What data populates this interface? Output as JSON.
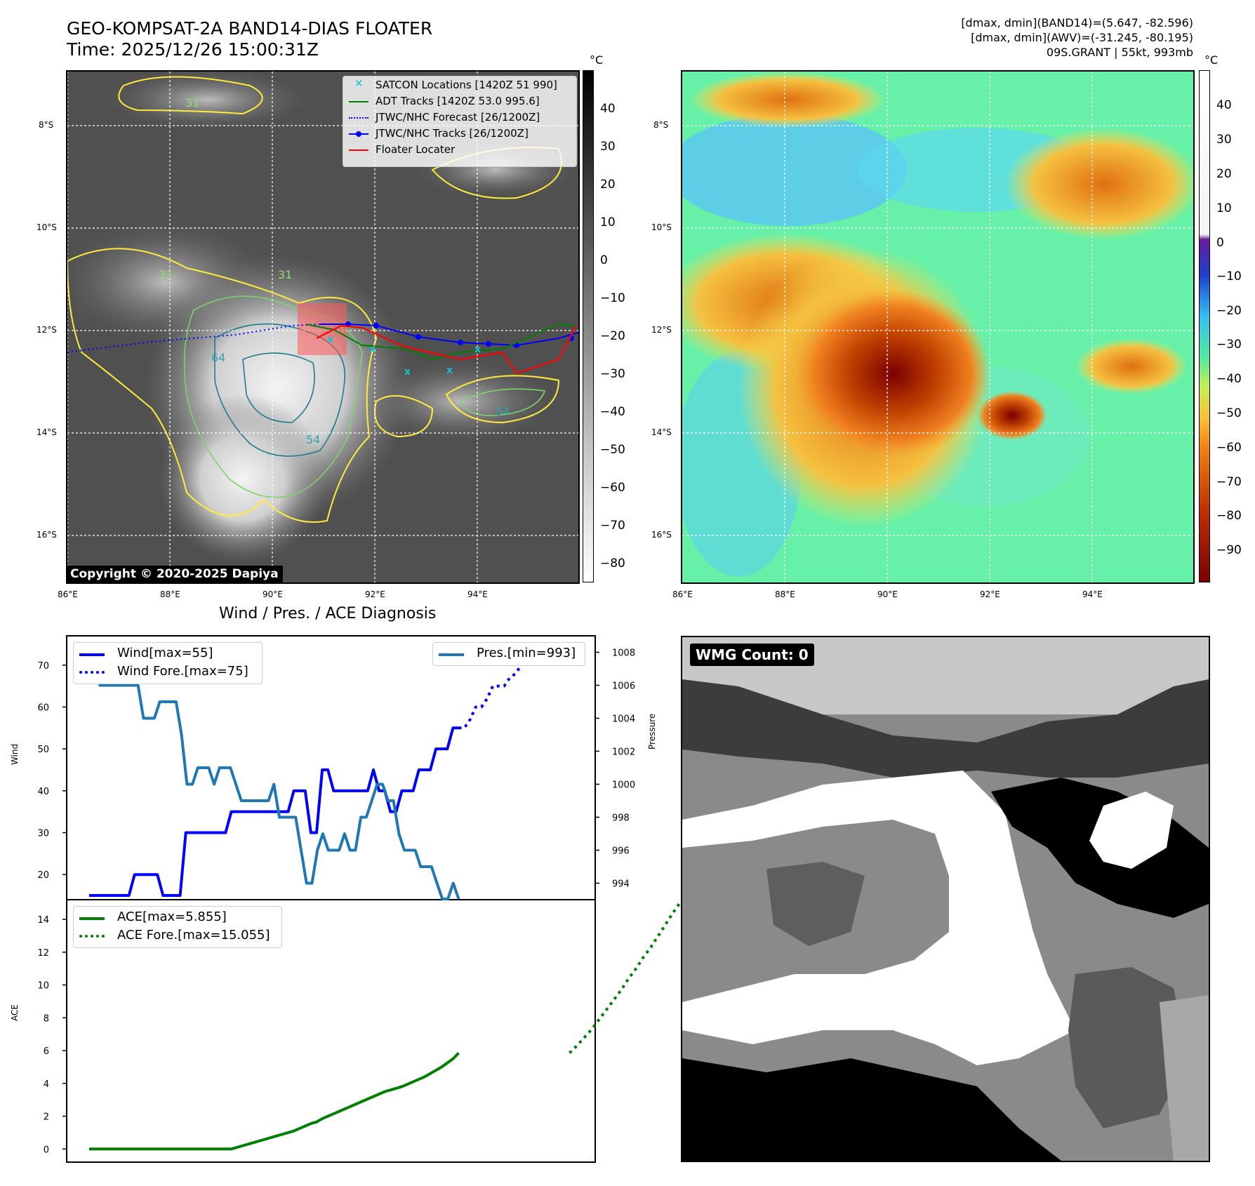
{
  "header": {
    "title_line1": "GEO-KOMPSAT-2A BAND14-DIAS FLOATER",
    "title_line2": "Time: 2025/12/26 15:00:31Z",
    "right_line1": "[dmax, dmin](BAND14)=(5.647, -82.596)",
    "right_line2": "[dmax, dmin](AWV)=(-31.245, -80.195)",
    "right_line3": "09S.GRANT | 55kt, 993mb"
  },
  "map_axes": {
    "lat_labels": [
      "8°S",
      "10°S",
      "12°S",
      "14°S",
      "16°S"
    ],
    "lon_labels": [
      "86°E",
      "88°E",
      "90°E",
      "92°E",
      "94°E"
    ]
  },
  "ir_panel": {
    "legend": [
      {
        "label": "SATCON Locations [1420Z 51 990]",
        "color": "#17becf",
        "style": "x"
      },
      {
        "label": "ADT Tracks [1420Z 53.0 995.6]",
        "color": "#008000",
        "style": "solid"
      },
      {
        "label": "JTWC/NHC Forecast [26/1200Z]",
        "color": "#0000ff",
        "style": "dotted"
      },
      {
        "label": "JTWC/NHC Tracks [26/1200Z]",
        "color": "#0000ff",
        "style": "solid-dot"
      },
      {
        "label": "Floater Locater",
        "color": "#ff0000",
        "style": "solid"
      }
    ],
    "contour_labels": [
      "31",
      "31",
      "31",
      "64",
      "54",
      "54"
    ],
    "colorbar_unit": "°C",
    "colorbar_ticks": [
      "40",
      "30",
      "20",
      "10",
      "0",
      "−10",
      "−20",
      "−30",
      "−40",
      "−50",
      "−60",
      "−70",
      "−80"
    ],
    "copyright": "Copyright © 2020-2025 Dapiya"
  },
  "awv_panel": {
    "colorbar_unit": "°C",
    "colorbar_ticks": [
      "40",
      "30",
      "20",
      "10",
      "0",
      "−10",
      "−20",
      "−30",
      "−40",
      "−50",
      "−60",
      "−70",
      "−80",
      "−90"
    ]
  },
  "diagnosis": {
    "title": "Wind / Pres. / ACE Diagnosis",
    "wind_ylabel": "Wind",
    "pressure_ylabel": "Pressure",
    "ace_ylabel": "ACE",
    "legend_wind": "Wind[max=55]",
    "legend_wind_fore": "Wind Fore.[max=75]",
    "legend_pres": "Pres.[min=993]",
    "legend_ace": "ACE[max=5.855]",
    "legend_ace_fore": "ACE Fore.[max=15.055]"
  },
  "wmg": {
    "badge": "WMG Count: 0"
  },
  "chart_data": [
    {
      "type": "line",
      "title": "Wind / Pres. / ACE Diagnosis",
      "ylabel": "Wind",
      "ylim": [
        14,
        77
      ],
      "yticks": [
        20,
        30,
        40,
        50,
        60,
        70
      ],
      "series": [
        {
          "name": "Wind[max=55]",
          "color": "#0000ff",
          "style": "solid",
          "values": [
            15,
            15,
            15,
            15,
            15,
            15,
            15,
            15,
            20,
            20,
            20,
            20,
            20,
            15,
            15,
            15,
            15,
            30,
            30,
            30,
            30,
            30,
            30,
            30,
            30,
            35,
            35,
            35,
            35,
            35,
            35,
            35,
            35,
            35,
            35,
            35,
            40,
            40,
            40,
            30,
            30,
            45,
            45,
            40,
            40,
            40,
            40,
            40,
            40,
            40,
            45,
            40,
            40,
            35,
            35,
            40,
            40,
            40,
            45,
            45,
            45,
            50,
            50,
            50,
            55,
            55
          ]
        },
        {
          "name": "Wind Fore.[max=75]",
          "color": "#0000ff",
          "style": "dotted",
          "values": [
            55,
            55,
            57,
            60,
            60,
            62,
            65,
            65,
            65,
            67,
            68,
            70,
            72,
            73,
            74,
            75,
            75
          ]
        }
      ]
    },
    {
      "type": "line",
      "ylabel": "Pressure",
      "ylim": [
        993,
        1009
      ],
      "yticks": [
        994,
        996,
        998,
        1000,
        1002,
        1004,
        1006,
        1008
      ],
      "series": [
        {
          "name": "Pres.[min=993]",
          "color": "#1f77b4",
          "style": "solid",
          "values": [
            1008,
            1008,
            1006,
            1006,
            1006,
            1006,
            1006,
            1006,
            1006,
            1006,
            1004,
            1004,
            1004,
            1005,
            1005,
            1005,
            1005,
            1003,
            1000,
            1000,
            1001,
            1001,
            1001,
            1000,
            1001,
            1001,
            1001,
            1000,
            999,
            999,
            999,
            999,
            999,
            999,
            1000,
            998,
            998,
            998,
            998,
            996,
            994,
            994,
            996,
            997,
            996,
            996,
            996,
            997,
            996,
            996,
            998,
            998,
            999,
            1000,
            1000,
            999,
            999,
            997,
            996,
            996,
            996,
            995,
            995,
            995,
            994,
            993,
            993,
            994,
            993
          ]
        }
      ]
    },
    {
      "type": "line",
      "ylabel": "ACE",
      "ylim": [
        -0.8,
        15.2
      ],
      "yticks": [
        0,
        2,
        4,
        6,
        8,
        10,
        12,
        14
      ],
      "series": [
        {
          "name": "ACE[max=5.855]",
          "color": "#008000",
          "style": "solid",
          "values": [
            0,
            0,
            0,
            0,
            0,
            0,
            0,
            0,
            0,
            0,
            0,
            0,
            0,
            0,
            0,
            0,
            0,
            0,
            0,
            0,
            0,
            0,
            0,
            0,
            0,
            0,
            0.1,
            0.2,
            0.3,
            0.4,
            0.5,
            0.6,
            0.7,
            0.8,
            0.9,
            1.0,
            1.1,
            1.25,
            1.4,
            1.55,
            1.65,
            1.85,
            2.0,
            2.15,
            2.3,
            2.45,
            2.6,
            2.75,
            2.9,
            3.05,
            3.2,
            3.35,
            3.5,
            3.6,
            3.7,
            3.8,
            3.95,
            4.1,
            4.25,
            4.4,
            4.6,
            4.8,
            5.0,
            5.25,
            5.5,
            5.855
          ]
        },
        {
          "name": "ACE Fore.[max=15.055]",
          "color": "#008000",
          "style": "dotted",
          "values": [
            5.855,
            6.3,
            6.8,
            7.3,
            7.9,
            8.5,
            9.1,
            9.7,
            10.4,
            11.0,
            11.7,
            12.3,
            13.0,
            13.7,
            14.4,
            15.055
          ]
        }
      ]
    }
  ]
}
